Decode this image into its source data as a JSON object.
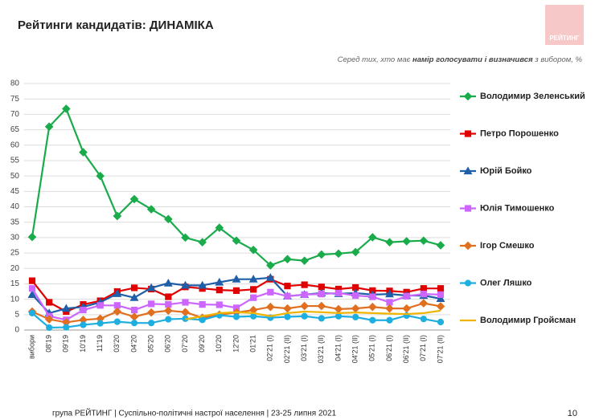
{
  "chart_data": {
    "type": "line",
    "title": "Рейтинги кандидатів: ДИНАМІКА",
    "subtitle": [
      "Серед тих, хто має ",
      "намір голосувати і визначився",
      " з вибором, %"
    ],
    "logo": "РЕЙТИНГ",
    "footer": "група РЕЙТИНГ | Суспільно-політичні настрої населення  | 23-25 липня 2021",
    "page_number": "10",
    "categories": [
      "вибори",
      "08'19",
      "09'19",
      "10'19",
      "11'19",
      "03'20",
      "04'20",
      "05'20",
      "06'20",
      "07'20",
      "09'20",
      "10'20",
      "12'20",
      "01'21",
      "02'21 (I)",
      "02'21 (II)",
      "03'21 (I)",
      "03'21 (II)",
      "04'21 (I)",
      "04'21 (II)",
      "05'21 (I)",
      "06'21 (I)",
      "06'21 (II)",
      "07'21 (I)",
      "07'21 (II)"
    ],
    "ylim": [
      0,
      80
    ],
    "yticks": [
      0,
      5,
      10,
      15,
      20,
      25,
      30,
      35,
      40,
      45,
      50,
      55,
      60,
      65,
      70,
      75,
      80
    ],
    "grid": true,
    "series": [
      {
        "name": "Володимир Зеленський",
        "color": "#1aab4b",
        "marker": "diamond",
        "values": [
          30.2,
          66,
          71.8,
          57.7,
          50,
          37,
          42.5,
          39.2,
          36,
          30,
          28.5,
          33.2,
          29,
          26,
          21,
          23,
          22.5,
          24.5,
          24.8,
          25.3,
          30.1,
          28.5,
          28.8,
          29,
          27.5
        ]
      },
      {
        "name": "Петро Порошенко",
        "color": "#e00000",
        "marker": "square",
        "values": [
          16,
          9,
          6,
          8.3,
          9.5,
          12.5,
          13.7,
          13.3,
          10.8,
          14,
          13.5,
          13,
          12.8,
          13.2,
          16.5,
          14.3,
          14.7,
          14,
          13.3,
          13.8,
          12.8,
          12.7,
          12.3,
          13.5,
          13.5
        ]
      },
      {
        "name": "Юрій Бойко",
        "color": "#1f5fa8",
        "marker": "triangle",
        "values": [
          11.5,
          5.5,
          7,
          7.5,
          9,
          11.8,
          10.5,
          13.7,
          15.2,
          14.5,
          14.5,
          15.5,
          16.5,
          16.5,
          17,
          11,
          11.5,
          12,
          11.8,
          12,
          11.5,
          11.7,
          11.2,
          11.2,
          10.2
        ]
      },
      {
        "name": "Юлія Тимошенко",
        "color": "#cc66ff",
        "marker": "square",
        "values": [
          13.5,
          4.5,
          3.3,
          6.5,
          8,
          8,
          6.5,
          8.5,
          8.3,
          9,
          8.3,
          8.2,
          7.2,
          10.5,
          12.3,
          11,
          11.5,
          11.7,
          12,
          11.2,
          10.8,
          9,
          11,
          11.7,
          11.5
        ]
      },
      {
        "name": "Ігор Смешко",
        "color": "#e07020",
        "marker": "diamond",
        "values": [
          6,
          3.5,
          2.5,
          3.3,
          3.7,
          6,
          4.3,
          5.7,
          6.3,
          5.8,
          4,
          5,
          5.7,
          6.5,
          7.5,
          7,
          7.8,
          7.8,
          6.8,
          7,
          7.5,
          7,
          7,
          8.7,
          7.7
        ]
      },
      {
        "name": "Олег Ляшко",
        "color": "#1eaee0",
        "marker": "circle",
        "values": [
          5.5,
          0.8,
          0.9,
          1.7,
          2.2,
          2.7,
          2.3,
          2.3,
          3.5,
          3.7,
          3.3,
          4.8,
          4.3,
          4.5,
          4,
          4.3,
          4.5,
          3.8,
          4.5,
          4.2,
          3.2,
          3.2,
          4.7,
          3.6,
          2.6
        ]
      },
      {
        "name": "Володимир Гройсман",
        "color": "#f0b400",
        "marker": "none",
        "values": [
          null,
          null,
          null,
          null,
          null,
          null,
          null,
          null,
          null,
          3.5,
          4.5,
          5.5,
          5.8,
          5.5,
          4.5,
          5.5,
          6,
          5.8,
          5.5,
          5.7,
          5.5,
          5.3,
          5.2,
          5.5,
          6.3
        ]
      }
    ]
  }
}
